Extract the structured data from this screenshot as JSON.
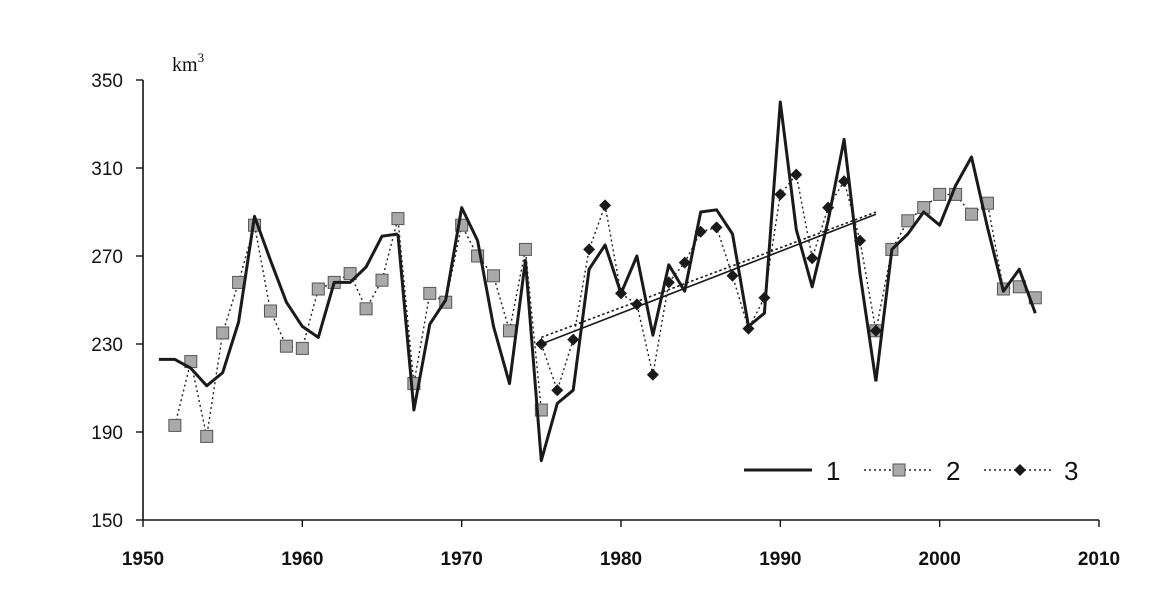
{
  "chart_data": {
    "type": "line",
    "title": "",
    "xlabel": "",
    "ylabel": "km3",
    "y_unit": {
      "base": "km",
      "exp": "3"
    },
    "xlim": [
      1950,
      2010
    ],
    "ylim": [
      150,
      350
    ],
    "x_ticks": [
      1950,
      1960,
      1970,
      1980,
      1990,
      2000,
      2010
    ],
    "y_ticks": [
      150,
      190,
      230,
      270,
      310,
      350
    ],
    "grid": false,
    "legend_position": "bottom-right",
    "legend": [
      "1",
      "2",
      "3"
    ],
    "series": [
      {
        "name": "1",
        "style": "solid",
        "color": "#1a1a1a",
        "segments": [
          {
            "x": [
              1951,
              1952,
              1953,
              1954,
              1955,
              1956,
              1957,
              1958,
              1959,
              1960,
              1961,
              1962,
              1963,
              1964,
              1965,
              1966
            ],
            "y": [
              223,
              223,
              219,
              211,
              217,
              240,
              288,
              268,
              249,
              238,
              233,
              258,
              258,
              265,
              279,
              280
            ]
          },
          {
            "x": [
              1966,
              1967,
              1968,
              1969,
              1970,
              1971,
              1972,
              1973,
              1974,
              1975,
              1976,
              1977,
              1978,
              1979,
              1980,
              1981,
              1982,
              1983,
              1984,
              1985,
              1986,
              1987,
              1988,
              1989,
              1990,
              1991,
              1992,
              1993,
              1994,
              1995,
              1996
            ],
            "y": [
              280,
              200,
              239,
              250,
              292,
              277,
              238,
              212,
              268,
              177,
              203,
              209,
              264,
              275,
              253,
              270,
              234,
              266,
              254,
              290,
              291,
              280,
              238,
              244,
              340,
              282,
              256,
              286,
              323,
              262,
              213
            ]
          },
          {
            "x": [
              1996,
              1997,
              1998,
              1999,
              2000,
              2001,
              2002,
              2003,
              2004,
              2005,
              2006
            ],
            "y": [
              213,
              273,
              280,
              290,
              284,
              302,
              315,
              283,
              254,
              264,
              244
            ]
          }
        ]
      },
      {
        "name": "2",
        "style": "dotted",
        "marker": "square",
        "color": "#a9a9a9",
        "x": [
          1952,
          1953,
          1954,
          1955,
          1956,
          1957,
          1958,
          1959,
          1960,
          1961,
          1962,
          1963,
          1964,
          1965,
          1966,
          1967,
          1968,
          1969,
          1970,
          1971,
          1972,
          1973,
          1974,
          1975,
          1996,
          1997,
          1998,
          1999,
          2000,
          2001,
          2002,
          2003,
          2004,
          2005,
          2006
        ],
        "y": [
          193,
          222,
          188,
          235,
          258,
          284,
          245,
          229,
          228,
          255,
          258,
          262,
          246,
          259,
          287,
          212,
          253,
          249,
          284,
          270,
          261,
          236,
          273,
          200,
          236,
          273,
          286,
          292,
          298,
          298,
          289,
          294,
          255,
          256,
          251
        ]
      },
      {
        "name": "3",
        "style": "dotted",
        "marker": "diamond",
        "color": "#1a1a1a",
        "x": [
          1975,
          1976,
          1977,
          1978,
          1979,
          1980,
          1981,
          1982,
          1983,
          1984,
          1985,
          1986,
          1987,
          1988,
          1989,
          1990,
          1991,
          1992,
          1993,
          1994,
          1995,
          1996
        ],
        "y": [
          230,
          209,
          232,
          273,
          293,
          253,
          248,
          216,
          258,
          267,
          281,
          283,
          261,
          237,
          251,
          298,
          307,
          269,
          292,
          304,
          277,
          236
        ]
      }
    ],
    "trend_lines": [
      {
        "style": "solid",
        "x": [
          1975,
          1996
        ],
        "y": [
          230,
          289
        ]
      },
      {
        "style": "dotted",
        "x": [
          1975,
          1996
        ],
        "y": [
          233,
          290
        ]
      }
    ]
  }
}
